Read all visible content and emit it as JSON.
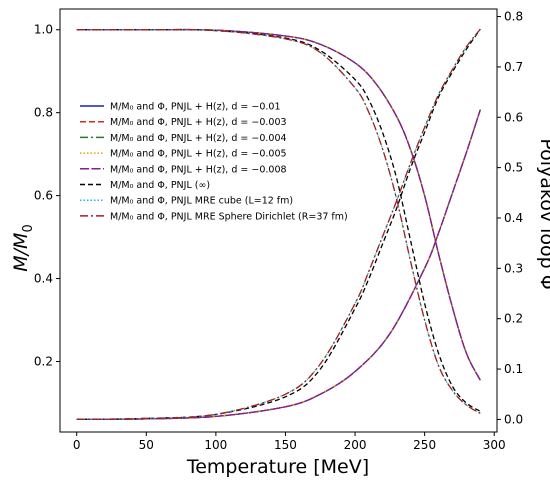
{
  "chart_data": {
    "type": "line",
    "xlabel": "Temperature [MeV]",
    "ylabel_left": "M/M",
    "ylabel_left_sub": "0",
    "ylabel_right": "Polyakov loop Φ",
    "xlim": [
      -12,
      302
    ],
    "ylim_left": [
      0.03,
      1.05
    ],
    "ylim_right": [
      -0.025,
      0.815
    ],
    "x_ticks": [
      0,
      50,
      100,
      150,
      200,
      250,
      300
    ],
    "y_ticks_left": [
      0.2,
      0.4,
      0.6,
      0.8,
      1.0
    ],
    "y_ticks_left_labels": [
      "0.2",
      "0.4",
      "0.6",
      "0.8",
      "1.0"
    ],
    "y_ticks_right": [
      0.0,
      0.1,
      0.2,
      0.3,
      0.4,
      0.5,
      0.6,
      0.7,
      0.8
    ],
    "y_ticks_right_labels": [
      "0.0",
      "0.1",
      "0.2",
      "0.3",
      "0.4",
      "0.5",
      "0.6",
      "0.7",
      "0.8"
    ],
    "grid": false,
    "legend_placement": "center-left",
    "series": [
      {
        "name": "M/M₀ and Φ, PNJL + H(z), d = −0.01",
        "color": "#1f1fbf",
        "dash": "solid",
        "group": "H",
        "mass": {
          "x": [
            0,
            50,
            100,
            150,
            175,
            200,
            215,
            230,
            240,
            250,
            260,
            270,
            280,
            290
          ],
          "y": [
            1.0,
            1.0,
            0.999,
            0.985,
            0.965,
            0.92,
            0.87,
            0.79,
            0.71,
            0.6,
            0.46,
            0.33,
            0.22,
            0.155
          ]
        },
        "phi": {
          "x": [
            0,
            50,
            100,
            150,
            175,
            200,
            225,
            250,
            260,
            270,
            280,
            290
          ],
          "y": [
            0.0,
            0.001,
            0.006,
            0.025,
            0.05,
            0.095,
            0.17,
            0.3,
            0.37,
            0.45,
            0.53,
            0.615
          ]
        }
      },
      {
        "name": "M/M₀ and Φ, PNJL + H(z), d = −0.003",
        "color": "#d62728",
        "dash": "6,3",
        "group": "H",
        "mass": {
          "x": [
            0,
            50,
            100,
            150,
            175,
            200,
            215,
            230,
            240,
            250,
            260,
            270,
            280,
            290
          ],
          "y": [
            1.0,
            1.0,
            0.999,
            0.985,
            0.965,
            0.92,
            0.87,
            0.79,
            0.71,
            0.6,
            0.46,
            0.33,
            0.22,
            0.155
          ]
        },
        "phi": {
          "x": [
            0,
            50,
            100,
            150,
            175,
            200,
            225,
            250,
            260,
            270,
            280,
            290
          ],
          "y": [
            0.0,
            0.001,
            0.006,
            0.025,
            0.05,
            0.095,
            0.17,
            0.3,
            0.37,
            0.45,
            0.53,
            0.615
          ]
        }
      },
      {
        "name": "M/M₀ and Φ, PNJL + H(z), d = −0.004",
        "color": "#2a7a2a",
        "dash": "8,3,2,3",
        "group": "H",
        "mass": {
          "x": [
            0,
            50,
            100,
            150,
            175,
            200,
            215,
            230,
            240,
            250,
            260,
            270,
            280,
            290
          ],
          "y": [
            1.0,
            1.0,
            0.999,
            0.985,
            0.965,
            0.92,
            0.87,
            0.79,
            0.71,
            0.6,
            0.46,
            0.33,
            0.22,
            0.155
          ]
        },
        "phi": {
          "x": [
            0,
            50,
            100,
            150,
            175,
            200,
            225,
            250,
            260,
            270,
            280,
            290
          ],
          "y": [
            0.0,
            0.001,
            0.006,
            0.025,
            0.05,
            0.095,
            0.17,
            0.3,
            0.37,
            0.45,
            0.53,
            0.615
          ]
        }
      },
      {
        "name": "M/M₀ and Φ, PNJL + H(z), d = −0.005",
        "color": "#e6a500",
        "dash": "1.5,2",
        "group": "H",
        "mass": {
          "x": [
            0,
            50,
            100,
            150,
            175,
            200,
            215,
            230,
            240,
            250,
            260,
            270,
            280,
            290
          ],
          "y": [
            1.0,
            1.0,
            0.999,
            0.985,
            0.965,
            0.92,
            0.87,
            0.79,
            0.71,
            0.6,
            0.46,
            0.33,
            0.22,
            0.155
          ]
        },
        "phi": {
          "x": [
            0,
            50,
            100,
            150,
            175,
            200,
            225,
            250,
            260,
            270,
            280,
            290
          ],
          "y": [
            0.0,
            0.001,
            0.006,
            0.025,
            0.05,
            0.095,
            0.17,
            0.3,
            0.37,
            0.45,
            0.53,
            0.615
          ]
        }
      },
      {
        "name": "M/M₀ and Φ, PNJL + H(z), d = −0.008",
        "color": "#8a1a9a",
        "dash": "9,2.5",
        "group": "H",
        "mass": {
          "x": [
            0,
            50,
            100,
            150,
            175,
            200,
            215,
            230,
            240,
            250,
            260,
            270,
            280,
            290
          ],
          "y": [
            1.0,
            1.0,
            0.999,
            0.985,
            0.965,
            0.92,
            0.87,
            0.79,
            0.71,
            0.6,
            0.46,
            0.33,
            0.22,
            0.155
          ]
        },
        "phi": {
          "x": [
            0,
            50,
            100,
            150,
            175,
            200,
            225,
            250,
            260,
            270,
            280,
            290
          ],
          "y": [
            0.0,
            0.001,
            0.006,
            0.025,
            0.05,
            0.095,
            0.17,
            0.3,
            0.37,
            0.45,
            0.53,
            0.615
          ]
        }
      },
      {
        "name": "M/M₀ and Φ, PNJL (∞)",
        "color": "#000000",
        "dash": "5,3",
        "group": "inf",
        "mass": {
          "x": [
            0,
            50,
            100,
            150,
            175,
            200,
            210,
            220,
            230,
            240,
            250,
            260,
            270,
            280,
            290
          ],
          "y": [
            1.0,
            1.0,
            0.998,
            0.98,
            0.95,
            0.88,
            0.83,
            0.75,
            0.64,
            0.49,
            0.34,
            0.22,
            0.14,
            0.1,
            0.08
          ]
        },
        "phi": {
          "x": [
            0,
            50,
            100,
            150,
            175,
            200,
            210,
            220,
            230,
            240,
            250,
            260,
            270,
            280,
            290
          ],
          "y": [
            0.0,
            0.002,
            0.01,
            0.045,
            0.1,
            0.22,
            0.28,
            0.35,
            0.42,
            0.5,
            0.57,
            0.64,
            0.69,
            0.735,
            0.775
          ]
        }
      },
      {
        "name": "M/M₀ and Φ, PNJL MRE cube (L=12 fm)",
        "color": "#17becf",
        "dash": "1.5,2",
        "group": "mre",
        "mass": {
          "x": [
            0,
            50,
            100,
            150,
            175,
            200,
            210,
            220,
            230,
            240,
            250,
            260,
            270,
            280,
            290
          ],
          "y": [
            1.0,
            1.0,
            0.998,
            0.978,
            0.945,
            0.86,
            0.8,
            0.71,
            0.59,
            0.44,
            0.3,
            0.19,
            0.13,
            0.095,
            0.075
          ]
        },
        "phi": {
          "x": [
            0,
            50,
            100,
            150,
            175,
            200,
            210,
            220,
            230,
            240,
            250,
            260,
            270,
            280,
            290
          ],
          "y": [
            0.0,
            0.002,
            0.01,
            0.05,
            0.11,
            0.23,
            0.295,
            0.365,
            0.435,
            0.51,
            0.58,
            0.645,
            0.695,
            0.74,
            0.775
          ]
        }
      },
      {
        "name": "M/M₀ and Φ, PNJL MRE Sphere Dirichlet (R=37 fm)",
        "color": "#a81e1e",
        "dash": "8,3,2,3",
        "group": "mre",
        "mass": {
          "x": [
            0,
            50,
            100,
            150,
            175,
            200,
            210,
            220,
            230,
            240,
            250,
            260,
            270,
            280,
            290
          ],
          "y": [
            1.0,
            1.0,
            0.998,
            0.978,
            0.945,
            0.86,
            0.8,
            0.71,
            0.59,
            0.44,
            0.3,
            0.19,
            0.13,
            0.095,
            0.075
          ]
        },
        "phi": {
          "x": [
            0,
            50,
            100,
            150,
            175,
            200,
            210,
            220,
            230,
            240,
            250,
            260,
            270,
            280,
            290
          ],
          "y": [
            0.0,
            0.002,
            0.01,
            0.05,
            0.11,
            0.23,
            0.295,
            0.365,
            0.435,
            0.51,
            0.58,
            0.645,
            0.695,
            0.74,
            0.775
          ]
        }
      }
    ]
  }
}
